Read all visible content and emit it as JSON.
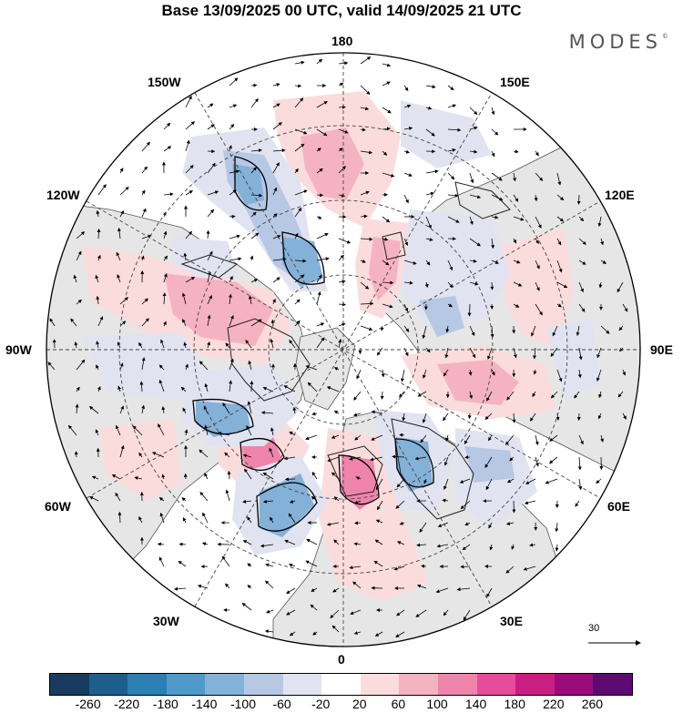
{
  "title": "Base 13/09/2025 00 UTC, valid 14/09/2025 21 UTC",
  "logo": "MODES",
  "logo_mark": "©",
  "longitude_labels": {
    "top": "180",
    "bottom": "0",
    "left": "90W",
    "right": "90E",
    "upper_left_outer": "150W",
    "upper_left_inner": "120W",
    "upper_right_outer": "150E",
    "upper_right_inner": "120E",
    "lower_left_inner": "60W",
    "lower_left_outer": "30W",
    "lower_right_inner": "60E",
    "lower_right_outer": "30E"
  },
  "reference_vector": "30",
  "colorbar": {
    "colors": [
      "#173c5f",
      "#1c5f8c",
      "#2a7fb4",
      "#4e9bcb",
      "#84b1d8",
      "#b6c8e4",
      "#e2e3f0",
      "#ffffff",
      "#fbdcdc",
      "#f5b3c1",
      "#ef84ab",
      "#e54c99",
      "#c81f83",
      "#9a0c7b",
      "#5e0a73"
    ],
    "ticks": [
      "-260",
      "-220",
      "-180",
      "-140",
      "-100",
      "-60",
      "-20",
      "20",
      "60",
      "100",
      "140",
      "180",
      "220",
      "260"
    ]
  },
  "colors": {
    "land": "#e6e6e6",
    "ocean": "#ffffff",
    "positive_light": "#fbdcdc",
    "positive_mid": "#f5b3c1",
    "positive_strong": "#ef84ab",
    "negative_light": "#e2e3f0",
    "negative_mid": "#b6c8e4",
    "negative_strong": "#84b1d8"
  }
}
